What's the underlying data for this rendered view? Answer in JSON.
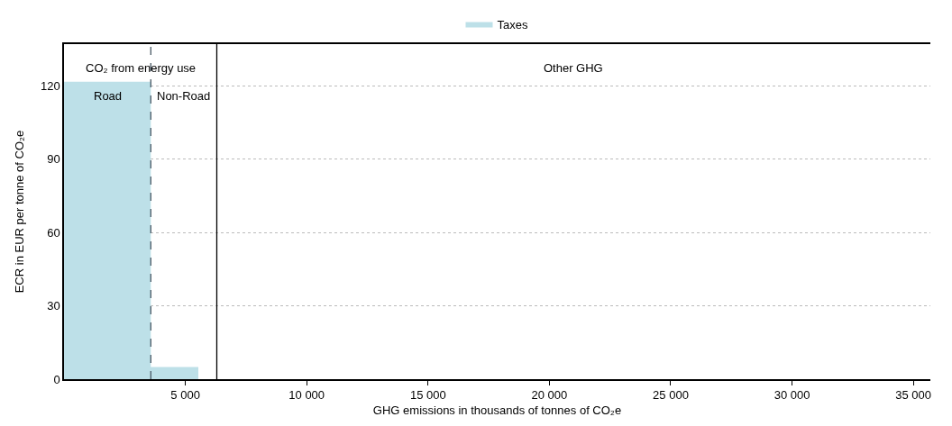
{
  "chart_data": {
    "type": "area",
    "xlabel": "GHG emissions in thousands of tonnes of CO₂e",
    "ylabel": "ECR in EUR per tonne of CO₂e",
    "series": [
      {
        "name": "Taxes",
        "color": "#bde0e8",
        "x": [
          0,
          3577,
          3577,
          5535,
          5535
        ],
        "values": [
          121.6,
          121.6,
          5.0,
          5.0,
          0
        ]
      }
    ],
    "xlim": [
      0,
      35700
    ],
    "xticks": [
      {
        "value": 5000,
        "label": "5 000"
      },
      {
        "value": 10000,
        "label": "10 000"
      },
      {
        "value": 15000,
        "label": "15 000"
      },
      {
        "value": 20000,
        "label": "20 000"
      },
      {
        "value": 25000,
        "label": "25 000"
      },
      {
        "value": 30000,
        "label": "30 000"
      },
      {
        "value": 35000,
        "label": "35 000"
      }
    ],
    "ylim": [
      0,
      137
    ],
    "yticks": [
      0,
      30,
      60,
      90,
      120
    ],
    "ref_lines": [
      {
        "axis": "x",
        "value": 3577,
        "color": "#4a5a66",
        "line_style": "dashed"
      },
      {
        "axis": "x",
        "value": 6296,
        "color": "#000000",
        "line_style": "solid"
      }
    ],
    "annotations": [
      "CO₂ from energy use",
      "Road",
      "Non-Road",
      "Other GHG"
    ],
    "grid": "y",
    "legend": "top"
  }
}
